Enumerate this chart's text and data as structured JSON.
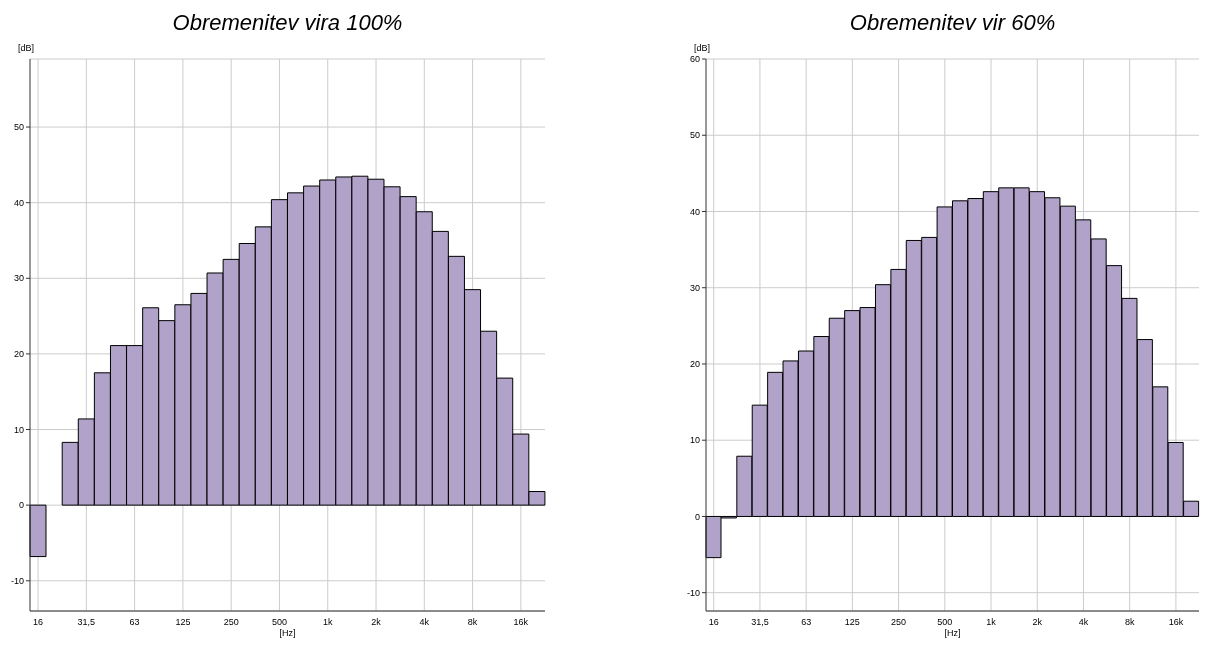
{
  "chart_data": [
    {
      "type": "bar",
      "title": "Obremenitev vira 100%",
      "xlabel": "[Hz]",
      "ylabel": "[dB]",
      "categories": [
        "16",
        null,
        null,
        "31,5",
        null,
        null,
        "63",
        null,
        null,
        "125",
        null,
        null,
        "250",
        null,
        null,
        "500",
        null,
        null,
        "1k",
        null,
        null,
        "2k",
        null,
        null,
        "4k",
        null,
        null,
        "8k",
        null,
        null,
        "16k",
        null
      ],
      "series": [
        {
          "color": "#b0a2c8",
          "values": [
            -6.8,
            0,
            8.3,
            11.4,
            17.5,
            21.1,
            21.1,
            26.1,
            24.4,
            26.5,
            28.0,
            30.7,
            32.5,
            34.6,
            36.8,
            40.4,
            41.3,
            42.2,
            43.0,
            43.4,
            43.5,
            43.1,
            42.1,
            40.8,
            38.8,
            36.2,
            32.9,
            28.5,
            23.0,
            16.8,
            9.4,
            1.8
          ]
        }
      ],
      "ylim": [
        -14,
        59
      ],
      "yticks": [
        -10,
        0,
        10,
        20,
        30,
        40,
        50
      ],
      "grid": true
    },
    {
      "type": "bar",
      "title": "Obremenitev vir 60%",
      "xlabel": "[Hz]",
      "ylabel": "[dB]",
      "categories": [
        "16",
        null,
        null,
        "31,5",
        null,
        null,
        "63",
        null,
        null,
        "125",
        null,
        null,
        "250",
        null,
        null,
        "500",
        null,
        null,
        "1k",
        null,
        null,
        "2k",
        null,
        null,
        "4k",
        null,
        null,
        "8k",
        null,
        null,
        "16k",
        null
      ],
      "series": [
        {
          "color": "#b0a2c8",
          "values": [
            -5.4,
            -0.2,
            7.9,
            14.6,
            18.9,
            20.4,
            21.7,
            23.6,
            26.0,
            27.0,
            27.4,
            30.4,
            32.4,
            36.2,
            36.6,
            40.6,
            41.4,
            41.7,
            42.6,
            43.1,
            43.1,
            42.6,
            41.8,
            40.7,
            38.9,
            36.4,
            32.9,
            28.6,
            23.2,
            17.0,
            9.7,
            2.0
          ]
        }
      ],
      "ylim": [
        -12.4,
        60
      ],
      "yticks": [
        -10,
        0,
        10,
        20,
        30,
        40,
        50,
        60
      ],
      "grid": true
    }
  ]
}
